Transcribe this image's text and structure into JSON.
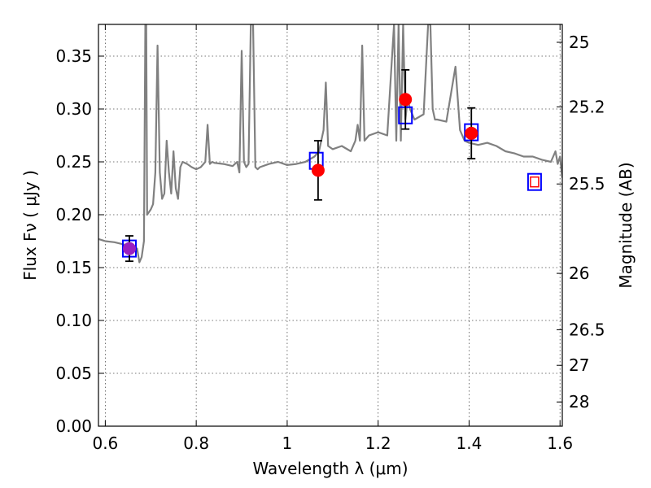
{
  "chart_data": {
    "type": "scatter",
    "title": "",
    "xlabel": "Wavelength  λ (μm)",
    "ylabel": "Flux  Fν  ( μJy )",
    "y2label": "Magnitude (AB)",
    "xlim": [
      0.585,
      1.605
    ],
    "ylim": [
      0.0,
      0.38
    ],
    "xticks": [
      0.6,
      0.8,
      1.0,
      1.2,
      1.4,
      1.6
    ],
    "xtick_labels": [
      "0.6",
      "0.8",
      "1",
      "1.2",
      "1.4",
      "1.6"
    ],
    "yticks": [
      0.0,
      0.05,
      0.1,
      0.15,
      0.2,
      0.25,
      0.3,
      0.35
    ],
    "ytick_labels": [
      "0.00",
      "0.05",
      "0.10",
      "0.15",
      "0.20",
      "0.25",
      "0.30",
      "0.35"
    ],
    "y2ticks": [
      25,
      25.2,
      25.5,
      26,
      26.5,
      27,
      28
    ],
    "y2tick_labels": [
      "25",
      "25.2",
      "25.5",
      "26",
      "26.5",
      "27",
      "28"
    ],
    "grid": true,
    "colors": {
      "spectrum": "#808080",
      "observed": "#ff0000",
      "model": "#0000ff",
      "errorbar": "#000000",
      "overlap": "#9a1fc0"
    },
    "series": [
      {
        "kind": "line",
        "x": [
          0.585,
          0.6,
          0.62,
          0.64,
          0.66,
          0.67,
          0.675,
          0.68,
          0.685,
          0.688,
          0.69,
          0.692,
          0.7,
          0.705,
          0.71,
          0.715,
          0.72,
          0.725,
          0.73,
          0.735,
          0.74,
          0.745,
          0.75,
          0.755,
          0.76,
          0.765,
          0.77,
          0.78,
          0.79,
          0.8,
          0.81,
          0.82,
          0.825,
          0.83,
          0.835,
          0.84,
          0.86,
          0.88,
          0.89,
          0.895,
          0.9,
          0.905,
          0.91,
          0.915,
          0.92,
          0.925,
          0.93,
          0.935,
          0.94,
          0.96,
          0.98,
          1.0,
          1.02,
          1.04,
          1.06,
          1.07,
          1.075,
          1.08,
          1.085,
          1.09,
          1.1,
          1.12,
          1.14,
          1.15,
          1.155,
          1.16,
          1.165,
          1.17,
          1.18,
          1.2,
          1.22,
          1.235,
          1.24,
          1.245,
          1.25,
          1.255,
          1.26,
          1.265,
          1.27,
          1.28,
          1.3,
          1.31,
          1.315,
          1.32,
          1.325,
          1.33,
          1.35,
          1.37,
          1.38,
          1.385,
          1.39,
          1.4,
          1.42,
          1.44,
          1.46,
          1.48,
          1.5,
          1.52,
          1.54,
          1.56,
          1.58,
          1.59,
          1.595,
          1.6,
          1.605
        ],
        "y": [
          0.177,
          0.175,
          0.174,
          0.172,
          0.17,
          0.168,
          0.155,
          0.16,
          0.175,
          0.38,
          0.38,
          0.2,
          0.205,
          0.21,
          0.24,
          0.36,
          0.24,
          0.215,
          0.22,
          0.27,
          0.24,
          0.22,
          0.26,
          0.225,
          0.215,
          0.245,
          0.25,
          0.248,
          0.245,
          0.243,
          0.245,
          0.25,
          0.285,
          0.248,
          0.25,
          0.249,
          0.248,
          0.246,
          0.25,
          0.24,
          0.355,
          0.25,
          0.245,
          0.248,
          0.38,
          0.38,
          0.245,
          0.243,
          0.245,
          0.248,
          0.25,
          0.247,
          0.248,
          0.25,
          0.255,
          0.26,
          0.27,
          0.28,
          0.325,
          0.265,
          0.262,
          0.265,
          0.26,
          0.27,
          0.285,
          0.27,
          0.36,
          0.27,
          0.275,
          0.278,
          0.275,
          0.38,
          0.27,
          0.38,
          0.27,
          0.38,
          0.29,
          0.31,
          0.3,
          0.29,
          0.295,
          0.38,
          0.38,
          0.3,
          0.29,
          0.29,
          0.288,
          0.34,
          0.28,
          0.275,
          0.27,
          0.268,
          0.266,
          0.268,
          0.265,
          0.26,
          0.258,
          0.255,
          0.255,
          0.252,
          0.25,
          0.26,
          0.248,
          0.255,
          0.235
        ]
      },
      {
        "kind": "model",
        "x": [
          0.653,
          1.064,
          1.26,
          1.405,
          1.544
        ],
        "y": [
          0.168,
          0.251,
          0.294,
          0.278,
          0.231
        ]
      },
      {
        "kind": "observed",
        "x": [
          0.653,
          1.068,
          1.26,
          1.405
        ],
        "y": [
          0.168,
          0.242,
          0.309,
          0.277
        ],
        "yerr": [
          0.012,
          0.028,
          0.028,
          0.024
        ]
      }
    ]
  }
}
